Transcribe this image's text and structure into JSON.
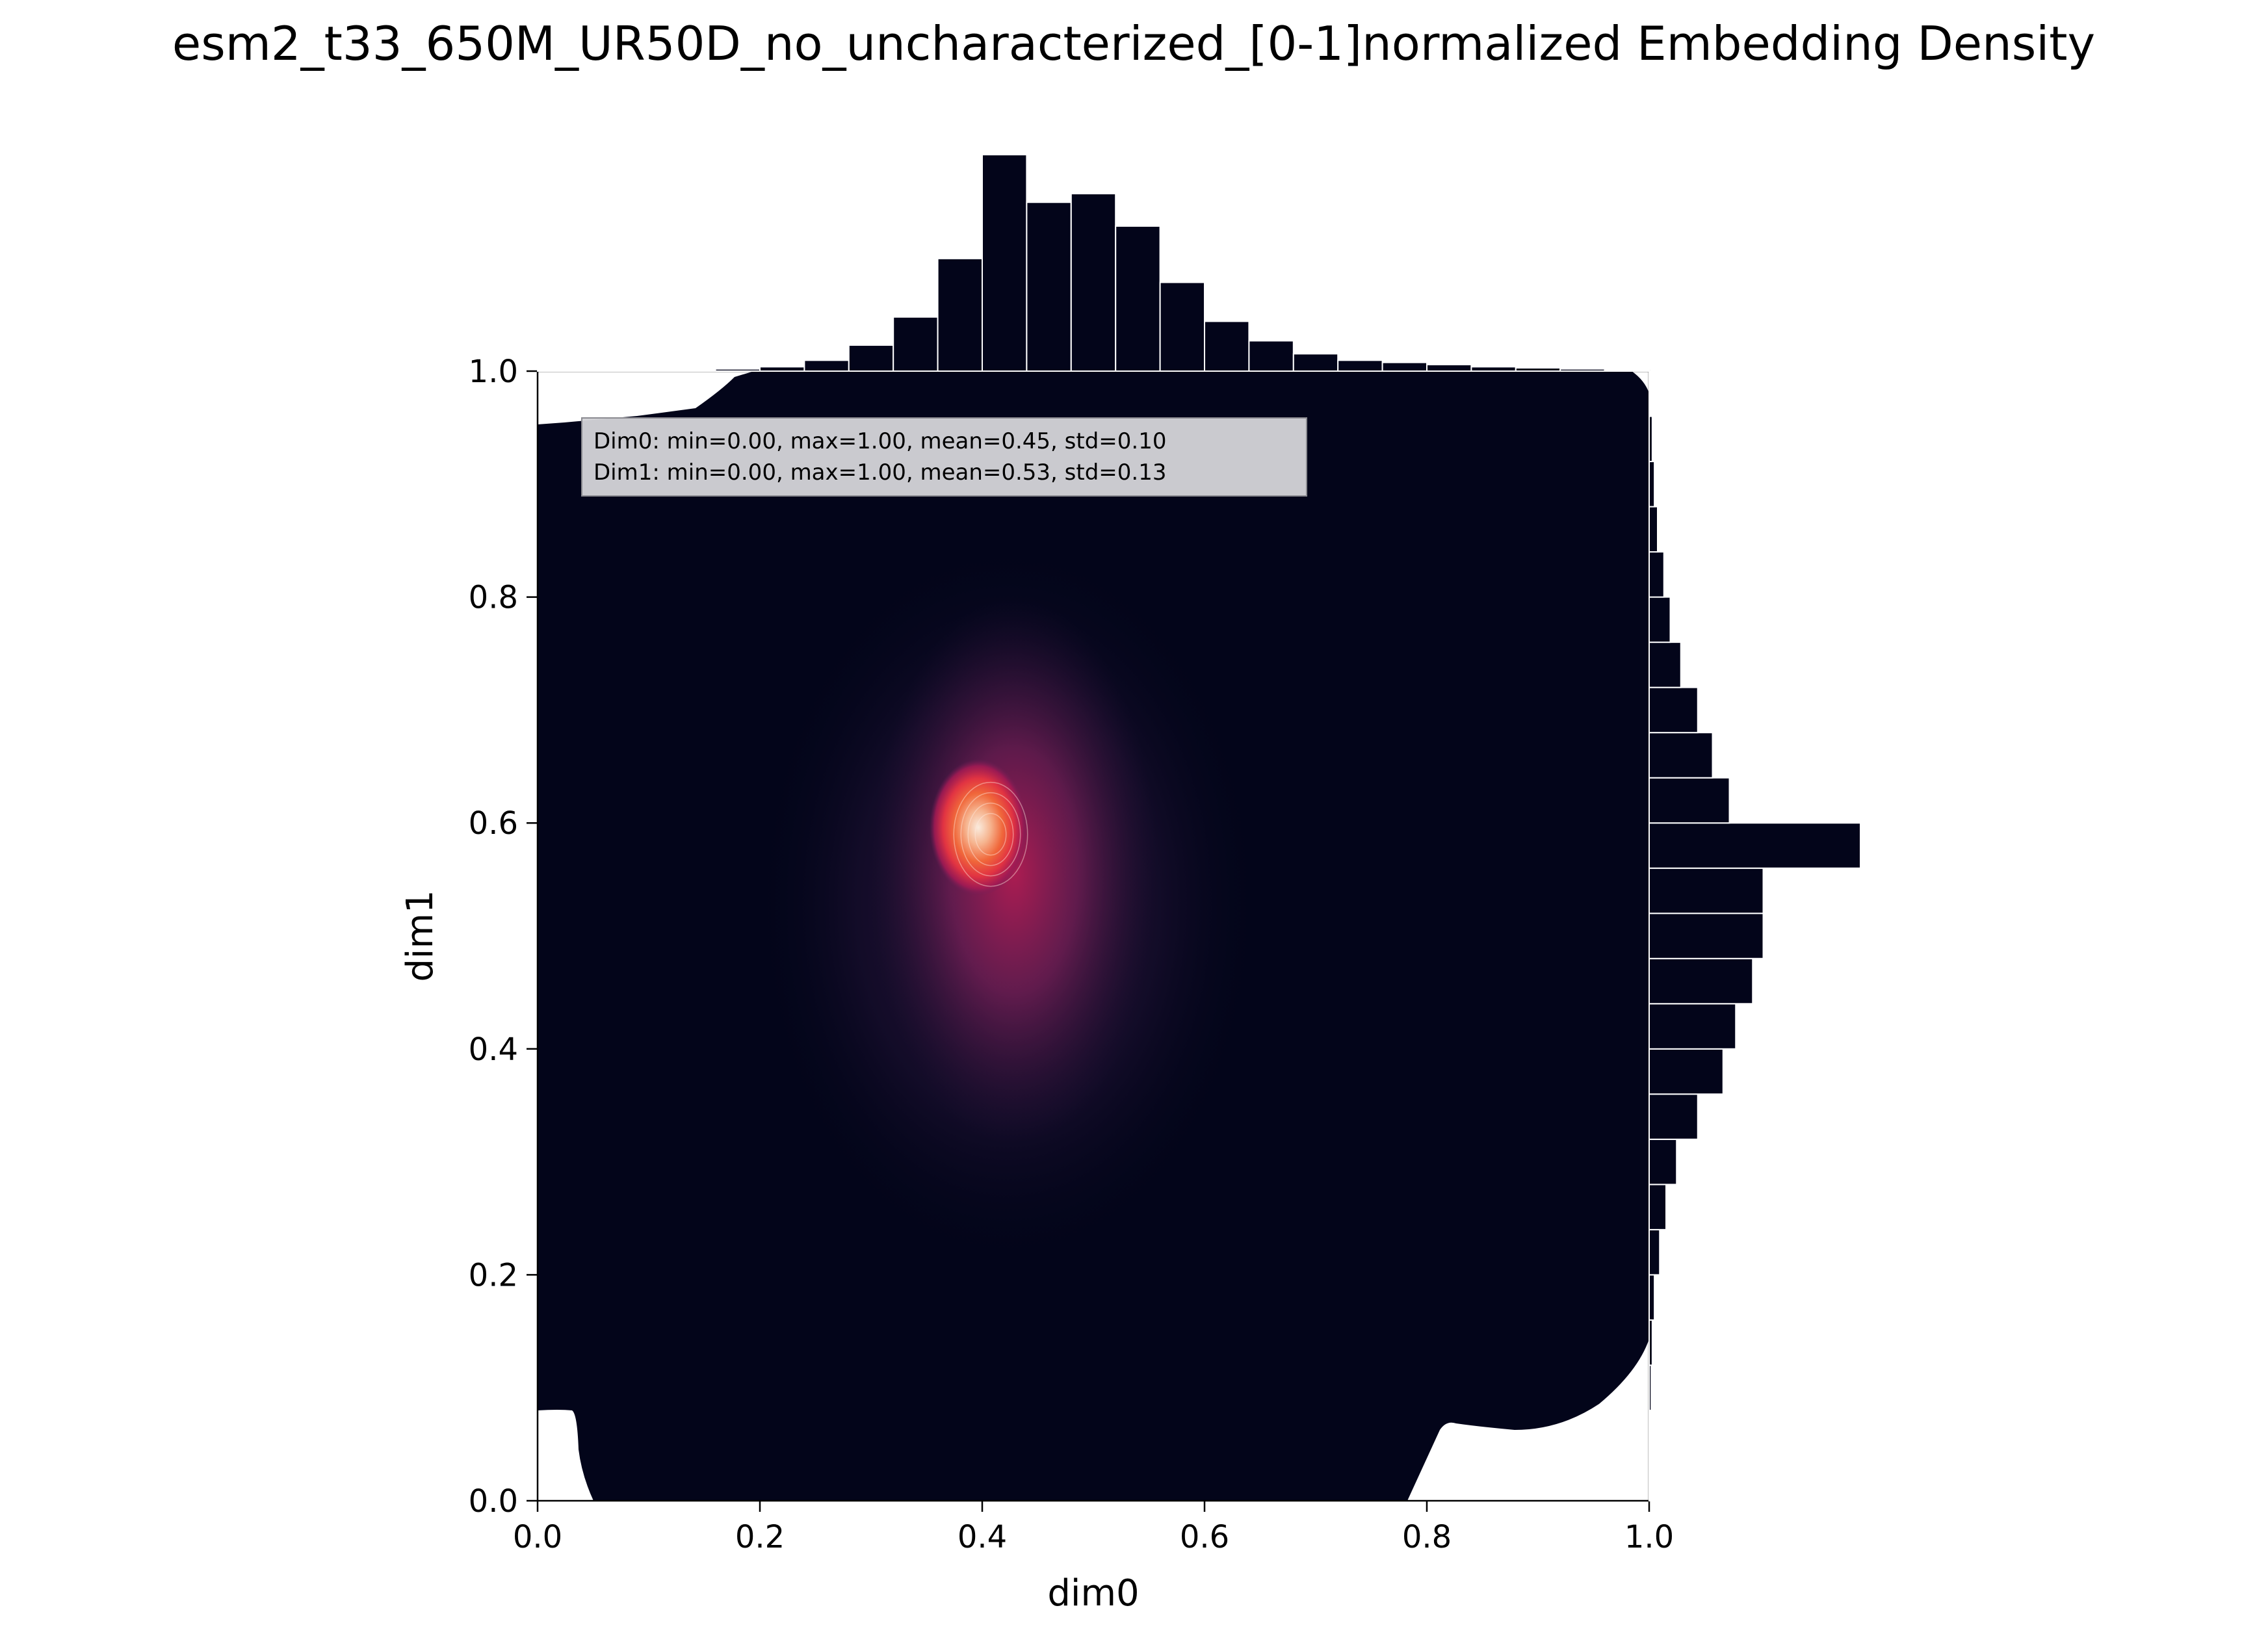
{
  "chart_data": {
    "type": "heatmap",
    "title": "esm2_t33_650M_UR50D_no_uncharacterized_[0-1]normalized Embedding Density",
    "xlabel": "dim0",
    "ylabel": "dim1",
    "xlim": [
      0,
      1
    ],
    "ylim": [
      0,
      1
    ],
    "x_ticks": [
      "0.0",
      "0.2",
      "0.4",
      "0.6",
      "0.8",
      "1.0"
    ],
    "y_ticks": [
      "0.0",
      "0.2",
      "0.4",
      "0.6",
      "0.8",
      "1.0"
    ],
    "grid": false,
    "colormap": "rocket",
    "colors": {
      "background": "#03051a",
      "mid": "#701f57",
      "high": "#e13342",
      "peak": "#faebdd"
    },
    "density_peaks": [
      {
        "x": 0.4,
        "y": 0.59,
        "relative_density": 1.0
      },
      {
        "x": 0.44,
        "y": 0.5,
        "relative_density": 0.55
      }
    ],
    "stats_box": {
      "line1": "Dim0: min=0.00, max=1.00, mean=0.45, std=0.10",
      "line2": "Dim1: min=0.00, max=1.00, mean=0.53, std=0.13",
      "placement": "top-left"
    },
    "marginal_x": {
      "bin_edges": [
        0.0,
        0.04,
        0.08,
        0.12,
        0.16,
        0.2,
        0.24,
        0.28,
        0.32,
        0.36,
        0.4,
        0.44,
        0.48,
        0.52,
        0.56,
        0.6,
        0.64,
        0.68,
        0.72,
        0.76,
        0.8,
        0.84,
        0.88,
        0.92,
        0.96,
        1.0
      ],
      "counts": [
        0.2,
        0.3,
        0.4,
        0.6,
        1,
        2,
        5,
        12,
        25,
        52,
        100,
        78,
        82,
        67,
        41,
        23,
        14,
        8,
        5,
        4,
        3,
        2,
        1.5,
        1,
        0.5
      ]
    },
    "marginal_y": {
      "bin_edges": [
        0.0,
        0.04,
        0.08,
        0.12,
        0.16,
        0.2,
        0.24,
        0.28,
        0.32,
        0.36,
        0.4,
        0.44,
        0.48,
        0.52,
        0.56,
        0.6,
        0.64,
        0.68,
        0.72,
        0.76,
        0.8,
        0.84,
        0.88,
        0.92,
        0.96,
        1.0
      ],
      "counts": [
        0.3,
        0.6,
        1,
        1.5,
        2.5,
        5,
        8,
        13,
        23,
        35,
        41,
        49,
        54,
        54,
        100,
        38,
        30,
        23,
        15,
        10,
        7,
        4,
        2.5,
        1.5,
        0.5
      ]
    }
  }
}
